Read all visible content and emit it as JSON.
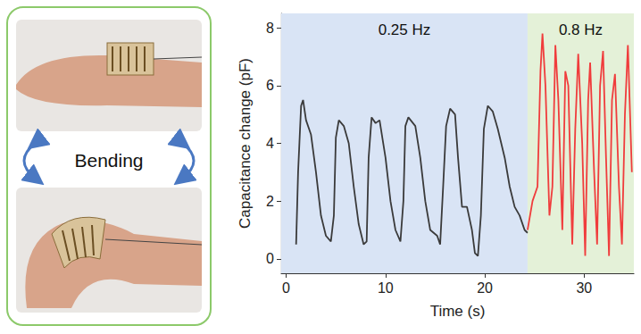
{
  "illustration": {
    "label": "Bending"
  },
  "chart_data": {
    "type": "line",
    "xlabel": "Time (s)",
    "ylabel": "Capacitance change (pF)",
    "xlim": [
      -0.5,
      35
    ],
    "xticks": [
      0,
      10,
      20,
      30
    ],
    "ylim": [
      -0.5,
      8.5
    ],
    "yticks": [
      0,
      2,
      4,
      6,
      8
    ],
    "grid": false,
    "regions": [
      {
        "label": "0.25 Hz",
        "start": -0.5,
        "end": 24.3,
        "color": "#d9e4f5"
      },
      {
        "label": "0.8 Hz",
        "start": 24.3,
        "end": 35,
        "color": "#e4f1d8"
      }
    ],
    "series": [
      {
        "name": "0.25 Hz",
        "color": "#3a3a3a",
        "x": [
          1.0,
          1.2,
          1.5,
          1.7,
          2.0,
          2.5,
          3.0,
          3.5,
          4.0,
          4.5,
          4.8,
          5.0,
          5.3,
          5.8,
          6.3,
          6.8,
          7.3,
          7.8,
          8.1,
          8.3,
          8.6,
          9.0,
          9.4,
          10.0,
          10.5,
          11.0,
          11.5,
          11.8,
          12.0,
          12.3,
          13.0,
          13.5,
          14.0,
          14.5,
          15.2,
          15.5,
          15.8,
          16.1,
          16.5,
          17.0,
          17.3,
          17.7,
          18.2,
          18.7,
          19.0,
          19.3,
          19.6,
          19.9,
          20.3,
          20.8,
          21.3,
          22.0,
          22.5,
          23.0,
          23.5,
          24.0,
          24.3
        ],
        "values": [
          0.5,
          3.0,
          5.3,
          5.5,
          4.8,
          4.3,
          3.0,
          1.5,
          0.8,
          0.6,
          1.5,
          4.2,
          4.8,
          4.6,
          4.0,
          2.5,
          1.2,
          0.5,
          0.6,
          3.5,
          4.9,
          4.7,
          4.8,
          3.5,
          2.0,
          1.0,
          0.6,
          2.0,
          4.6,
          4.9,
          4.6,
          3.5,
          2.0,
          1.0,
          0.8,
          0.5,
          2.5,
          4.6,
          5.2,
          5.0,
          3.5,
          1.8,
          1.8,
          1.0,
          0.2,
          0.1,
          1.5,
          4.5,
          5.3,
          5.1,
          4.5,
          3.5,
          2.5,
          1.8,
          1.5,
          1.0,
          0.9
        ]
      },
      {
        "name": "0.8 Hz",
        "color": "#f03c3c",
        "x": [
          24.3,
          24.8,
          25.3,
          25.6,
          25.8,
          26.1,
          26.5,
          26.8,
          27.1,
          27.4,
          27.8,
          28.1,
          28.4,
          28.8,
          29.1,
          29.4,
          29.8,
          30.1,
          30.4,
          30.6,
          31.0,
          31.3,
          31.6,
          31.9,
          32.2,
          32.5,
          32.8,
          33.1,
          33.5,
          33.8,
          34.1,
          34.4,
          34.8
        ],
        "values": [
          1.0,
          2.0,
          2.5,
          6.5,
          7.8,
          6.0,
          1.5,
          2.5,
          7.4,
          5.5,
          1.0,
          6.5,
          6.0,
          0.5,
          4.5,
          7.1,
          4.0,
          0.1,
          5.5,
          6.8,
          3.0,
          0.5,
          6.0,
          7.2,
          3.5,
          0.1,
          5.5,
          6.4,
          2.5,
          0.5,
          5.0,
          7.4,
          3.0
        ]
      }
    ]
  }
}
